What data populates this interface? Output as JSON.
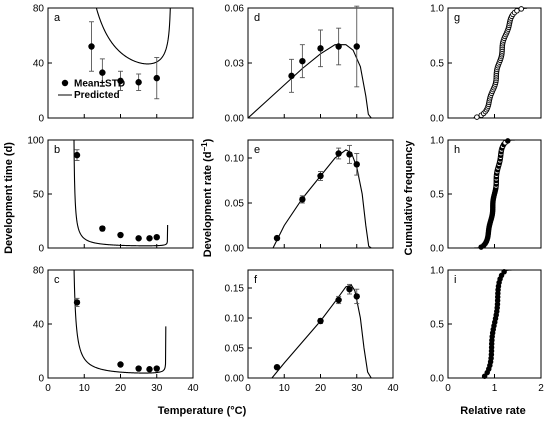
{
  "figure": {
    "xlabel_temperature": "Temperature (°C)",
    "xlabel_relative": "Relative rate",
    "ylabel_time": "Development time (d)",
    "ylabel_rate": "Development rate (d",
    "ylabel_rate_sup": "−1",
    "ylabel_rate_end": ")",
    "ylabel_cum": "Cumulative frequency",
    "legend_mean": "Mean±STD",
    "legend_pred": "Predicted"
  },
  "chart_data": [
    {
      "panel": "a",
      "type": "scatter",
      "xlim": [
        0,
        40
      ],
      "ylim": [
        0,
        80
      ],
      "xticks": [
        "0",
        "10",
        "20",
        "30",
        "40"
      ],
      "yticks": [
        "0",
        "40",
        "80"
      ],
      "x": [
        12,
        15,
        20,
        25,
        30
      ],
      "y": [
        52,
        33,
        27,
        26,
        29
      ],
      "err": [
        18,
        10,
        7,
        6,
        15
      ],
      "curve": {
        "model": "development-time",
        "k": 30,
        "tmin": 5.8,
        "tmax": 34.0,
        "beta": 0.3
      },
      "legend": "lower-left"
    },
    {
      "panel": "b",
      "type": "scatter",
      "xlim": [
        0,
        40
      ],
      "ylim": [
        0,
        100
      ],
      "xticks": [
        "0",
        "10",
        "20",
        "30",
        "40"
      ],
      "yticks": [
        "0",
        "50",
        "100"
      ],
      "x": [
        8,
        15,
        20,
        25,
        28,
        30
      ],
      "y": [
        86,
        18,
        12,
        9,
        9,
        10
      ],
      "err": [
        5,
        2,
        1.5,
        1,
        1,
        1.2
      ],
      "curve": {
        "model": "development-time",
        "k": 1.4,
        "tmin": 6.9,
        "tmax": 33.0,
        "beta": 0.3
      }
    },
    {
      "panel": "c",
      "type": "scatter",
      "xlim": [
        0,
        40
      ],
      "ylim": [
        0,
        80
      ],
      "xticks": [
        "0",
        "10",
        "20",
        "30",
        "40"
      ],
      "yticks": [
        "0",
        "40",
        "80"
      ],
      "x": [
        8,
        20,
        25,
        28,
        30
      ],
      "y": [
        56,
        10,
        7,
        6.5,
        7
      ],
      "err": [
        3,
        1,
        0.8,
        0.6,
        0.8
      ],
      "curve": {
        "model": "development-time",
        "k": 2.5,
        "tmin": 6.6,
        "tmax": 32.5,
        "beta": 0.3
      }
    },
    {
      "panel": "d",
      "type": "scatter",
      "xlim": [
        0,
        40
      ],
      "ylim": [
        0,
        0.06
      ],
      "xticks": [
        "0",
        "10",
        "20",
        "30",
        "40"
      ],
      "yticks": [
        "0.00",
        "0.03",
        "0.06"
      ],
      "x": [
        12,
        15,
        20,
        25,
        30
      ],
      "y": [
        0.023,
        0.031,
        0.038,
        0.039,
        0.039
      ],
      "err": [
        0.009,
        0.009,
        0.01,
        0.01,
        0.022
      ],
      "curve": {
        "model": "development-rate",
        "pts": [
          [
            0,
            0
          ],
          [
            5,
            0.009
          ],
          [
            10,
            0.018
          ],
          [
            15,
            0.027
          ],
          [
            20,
            0.035
          ],
          [
            24,
            0.04
          ],
          [
            27,
            0.04
          ],
          [
            29,
            0.037
          ],
          [
            31,
            0.028
          ],
          [
            32.5,
            0.012
          ],
          [
            33.2,
            0.002
          ],
          [
            34,
            0
          ],
          [
            40,
            0
          ]
        ]
      }
    },
    {
      "panel": "e",
      "type": "scatter",
      "xlim": [
        0,
        40
      ],
      "ylim": [
        0,
        0.12
      ],
      "xticks": [
        "0",
        "10",
        "20",
        "30",
        "40"
      ],
      "yticks": [
        "0.00",
        "0.05",
        "0.10"
      ],
      "x": [
        8,
        15,
        20,
        25,
        28,
        30
      ],
      "y": [
        0.011,
        0.054,
        0.08,
        0.105,
        0.104,
        0.093
      ],
      "err": [
        0.002,
        0.004,
        0.005,
        0.006,
        0.01,
        0.012
      ],
      "curve": {
        "model": "development-rate",
        "pts": [
          [
            0,
            0
          ],
          [
            5,
            0
          ],
          [
            6.9,
            0
          ],
          [
            10,
            0.025
          ],
          [
            15,
            0.055
          ],
          [
            20,
            0.08
          ],
          [
            24,
            0.1
          ],
          [
            27,
            0.109
          ],
          [
            28.5,
            0.106
          ],
          [
            30,
            0.09
          ],
          [
            31.5,
            0.06
          ],
          [
            32.5,
            0.025
          ],
          [
            33.3,
            0.002
          ],
          [
            34,
            0
          ],
          [
            40,
            0
          ]
        ]
      }
    },
    {
      "panel": "f",
      "type": "scatter",
      "xlim": [
        0,
        40
      ],
      "ylim": [
        0,
        0.18
      ],
      "xticks": [
        "0",
        "10",
        "20",
        "30",
        "40"
      ],
      "yticks": [
        "0.00",
        "0.05",
        "0.10",
        "0.15"
      ],
      "x": [
        8,
        20,
        25,
        28,
        30
      ],
      "y": [
        0.018,
        0.095,
        0.13,
        0.148,
        0.136
      ],
      "err": [
        0.002,
        0.004,
        0.006,
        0.008,
        0.012
      ],
      "curve": {
        "model": "development-rate",
        "pts": [
          [
            0,
            0
          ],
          [
            5,
            0
          ],
          [
            6.6,
            0
          ],
          [
            10,
            0.025
          ],
          [
            15,
            0.06
          ],
          [
            20,
            0.095
          ],
          [
            24,
            0.127
          ],
          [
            27,
            0.152
          ],
          [
            28.5,
            0.155
          ],
          [
            29.5,
            0.145
          ],
          [
            31,
            0.1
          ],
          [
            32,
            0.05
          ],
          [
            33,
            0.01
          ],
          [
            34,
            0
          ],
          [
            40,
            0
          ]
        ]
      }
    },
    {
      "panel": "g",
      "type": "scatter",
      "xlim": [
        0,
        2
      ],
      "ylim": [
        0,
        1
      ],
      "xticks": [
        "0",
        "1",
        "2"
      ],
      "yticks": [
        "0.0",
        "0.5",
        "1.0"
      ],
      "marker": "ring",
      "cdf": {
        "n": 60,
        "mu": 1.1,
        "s": 0.2,
        "jitter": 0.018
      },
      "curve": {
        "model": "cumulative",
        "mu": 1.1,
        "s": 0.2,
        "from": 0.55,
        "to": 1.7
      }
    },
    {
      "panel": "h",
      "type": "scatter",
      "xlim": [
        0,
        2
      ],
      "ylim": [
        0,
        1
      ],
      "xticks": [
        "0",
        "1",
        "2"
      ],
      "yticks": [
        "0.0",
        "0.5",
        "1.0"
      ],
      "marker": "mixed",
      "cdf": {
        "n": 60,
        "mu": 1.0,
        "s": 0.12,
        "jitter": 0.012
      },
      "curve": {
        "model": "cumulative",
        "mu": 1.0,
        "s": 0.12,
        "from": 0.5,
        "to": 1.9
      }
    },
    {
      "panel": "i",
      "type": "scatter",
      "xlim": [
        0,
        2
      ],
      "ylim": [
        0,
        1
      ],
      "xticks": [
        "0",
        "1",
        "2"
      ],
      "yticks": [
        "0.0",
        "0.5",
        "1.0"
      ],
      "marker": "dot",
      "cdf": {
        "n": 30,
        "mu": 1.0,
        "s": 0.1,
        "jitter": 0.02
      },
      "curve": {
        "model": "cumulative",
        "mu": 1.0,
        "s": 0.1,
        "from": 0.75,
        "to": 1.5
      }
    }
  ]
}
